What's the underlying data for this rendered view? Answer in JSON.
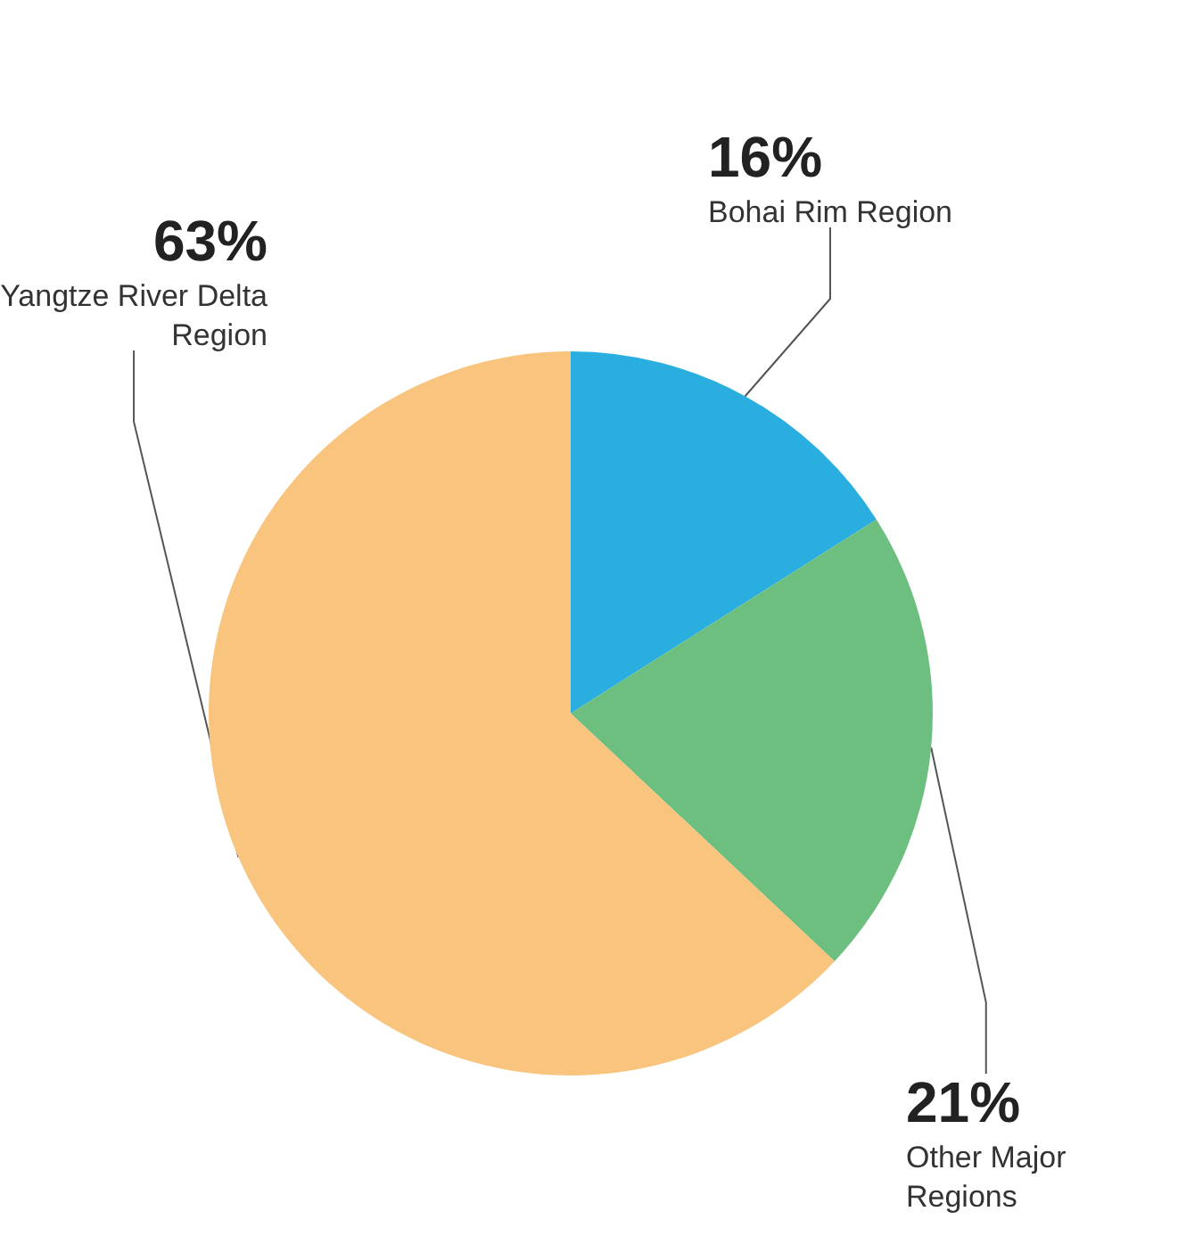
{
  "chart_data": {
    "type": "pie",
    "categories": [
      "Bohai Rim Region",
      "Other Major Regions",
      "Yangtze River Delta Region"
    ],
    "values": [
      16,
      21,
      63
    ],
    "colors": [
      "#29aedf",
      "#6cbf7e",
      "#f9c47e"
    ],
    "value_labels": [
      "16%",
      "21%",
      "63%"
    ],
    "legend": false
  }
}
